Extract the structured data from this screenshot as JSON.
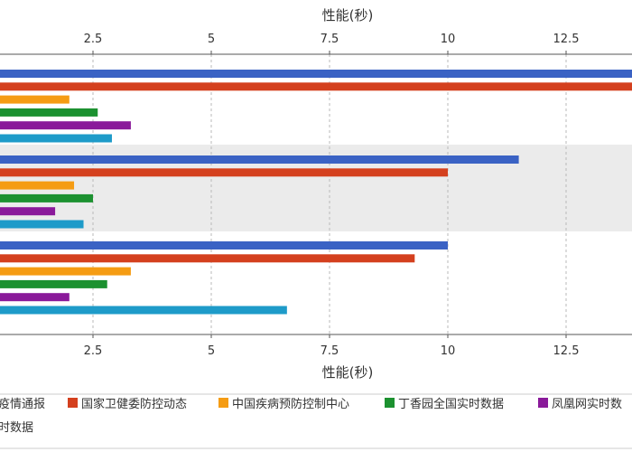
{
  "chart_data": {
    "type": "bar",
    "orientation": "horizontal",
    "xlabel_top": "性能(秒)",
    "xlabel_bottom": "性能(秒)",
    "xlim": [
      -2,
      14
    ],
    "x_ticks": [
      2.5,
      5,
      7.5,
      10,
      12.5
    ],
    "x_tick_labels": [
      "2.5",
      "5",
      "7.5",
      "10",
      "12.5"
    ],
    "grid": "vertical-dashed",
    "groups": [
      "",
      "",
      ""
    ],
    "highlighted_group_index": 1,
    "series": [
      {
        "name": "疫情通报",
        "color": "#3a62c4",
        "values": [
          14,
          11.5,
          10
        ]
      },
      {
        "name": "国家卫健委防控动态",
        "color": "#d4401e",
        "values": [
          14,
          10,
          9.3
        ]
      },
      {
        "name": "中国疾病预防控制中心",
        "color": "#f59c13",
        "values": [
          2,
          2.1,
          3.3
        ]
      },
      {
        "name": "丁香园全国实时数据",
        "color": "#1c9130",
        "values": [
          2.6,
          2.5,
          2.8
        ]
      },
      {
        "name": "凤凰网实时数",
        "color": "#8a1a9a",
        "values": [
          3.3,
          1.7,
          2
        ]
      },
      {
        "name": "时数据",
        "color": "#1e9bc9",
        "values": [
          2.9,
          2.3,
          6.6
        ]
      }
    ],
    "legend": "bottom"
  }
}
